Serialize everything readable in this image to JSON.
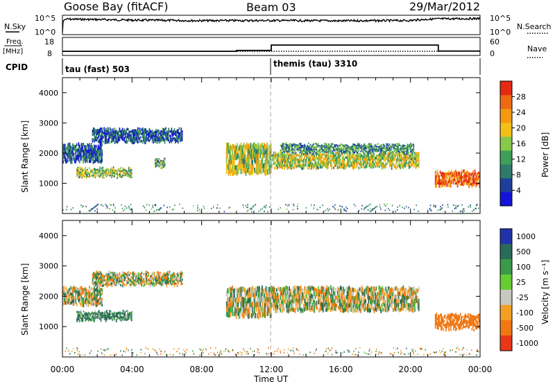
{
  "header": {
    "station": "Goose Bay (fitACF)",
    "beam": "Beam 03",
    "date": "29/Mar/2012"
  },
  "nsky_panel": {
    "left_label": "N.Sky",
    "right_label": "N.Search",
    "left_ticks": [
      "10^5",
      "10^0"
    ],
    "right_ticks": [
      "10^5",
      "10^0"
    ]
  },
  "freq_panel": {
    "left_label_1": "Freq.",
    "left_label_2": "[MHz]",
    "right_label": "Nave",
    "left_ticks": [
      "18",
      "8"
    ],
    "right_ticks": [
      "60",
      "0"
    ]
  },
  "cpid": {
    "label": "CPID",
    "segments": [
      {
        "name": "tau (fast) 503",
        "start_hour": 0
      },
      {
        "name": "themis (tau) 3310",
        "start_hour": 12
      }
    ]
  },
  "time_axis": {
    "label": "Time UT",
    "ticks": [
      "00:00",
      "04:00",
      "08:00",
      "12:00",
      "16:00",
      "20:00",
      "00:00"
    ]
  },
  "power_panel": {
    "ylabel": "Slant Range [km]",
    "yticks": [
      "1000",
      "2000",
      "3000",
      "4000"
    ],
    "colorbar_label": "Power [dB]",
    "colorbar_ticks": [
      "28",
      "24",
      "20",
      "16",
      "12",
      "8",
      "4"
    ],
    "colors": [
      "#1414d8",
      "#1e3f9e",
      "#2f7a6a",
      "#3f9e5a",
      "#86c84a",
      "#f2c018",
      "#f39a12",
      "#ef6a14",
      "#e42a14"
    ]
  },
  "velocity_panel": {
    "ylabel": "Slant Range [km]",
    "yticks": [
      "1000",
      "2000",
      "3000",
      "4000"
    ],
    "colorbar_label": "Velocity [m s⁻¹]",
    "colorbar_ticks": [
      "1000",
      "500",
      "100",
      "25",
      "-25",
      "-100",
      "-500",
      "-1000"
    ],
    "colors": [
      "#2233aa",
      "#2a6a58",
      "#3a9a4a",
      "#66cc33",
      "#c8c8c0",
      "#f2a024",
      "#f07814",
      "#e83818"
    ]
  },
  "chart_data": [
    {
      "type": "line",
      "title": "Goose Bay (fitACF)  Beam 03  29/Mar/2012",
      "series": [
        {
          "name": "N.Sky",
          "x": [
            0,
            0.2,
            4,
            8,
            12,
            16,
            20,
            21.5,
            24
          ],
          "values": [
            1,
            25000,
            12000,
            8000,
            9000,
            7000,
            9000,
            30000,
            40000
          ]
        },
        {
          "name": "N.Search",
          "x": [
            0,
            24
          ],
          "values": [
            1,
            1
          ]
        }
      ],
      "xlim": [
        0,
        24
      ],
      "ylog": true
    },
    {
      "type": "line",
      "series": [
        {
          "name": "Freq.",
          "x": [
            0,
            10,
            12,
            21.6,
            24
          ],
          "values": [
            10.0,
            10.6,
            14.5,
            10.2,
            10.2
          ]
        },
        {
          "name": "Nave",
          "x": [
            0,
            24
          ],
          "values": [
            18,
            18
          ]
        }
      ],
      "xlim": [
        0,
        24
      ]
    },
    {
      "type": "heatmap",
      "quantity": "Power",
      "unit": "dB",
      "xlabel": "Time UT",
      "ylabel": "Slant Range [km]",
      "xlim": [
        0,
        24
      ],
      "ylim": [
        0,
        4500
      ],
      "colorbar_range": [
        0,
        30
      ],
      "regions": [
        {
          "t_start": 0.0,
          "t_end": 2.3,
          "range_min": 1700,
          "range_max": 2300,
          "power": 6
        },
        {
          "t_start": 1.7,
          "t_end": 6.9,
          "range_min": 2350,
          "range_max": 2800,
          "power": 6
        },
        {
          "t_start": 0.8,
          "t_end": 4.0,
          "range_min": 1200,
          "range_max": 1500,
          "power": 14
        },
        {
          "t_start": 5.3,
          "t_end": 5.9,
          "range_min": 1500,
          "range_max": 1800,
          "power": 12
        },
        {
          "t_start": 9.4,
          "t_end": 12.0,
          "range_min": 1300,
          "range_max": 2300,
          "power": 16
        },
        {
          "t_start": 12.0,
          "t_end": 20.5,
          "range_min": 1500,
          "range_max": 2000,
          "power": 16
        },
        {
          "t_start": 12.5,
          "t_end": 20.2,
          "range_min": 2000,
          "range_max": 2300,
          "power": 10
        },
        {
          "t_start": 21.4,
          "t_end": 24.0,
          "range_min": 900,
          "range_max": 1400,
          "power": 26
        }
      ]
    },
    {
      "type": "heatmap",
      "quantity": "Velocity",
      "unit": "m s^-1",
      "xlabel": "Time UT",
      "ylabel": "Slant Range [km]",
      "xlim": [
        0,
        24
      ],
      "ylim": [
        0,
        4500
      ],
      "colorbar_range": [
        -1000,
        1000
      ],
      "regions": [
        {
          "t_start": 0.0,
          "t_end": 2.3,
          "range_min": 1700,
          "range_max": 2300,
          "velocity": 0
        },
        {
          "t_start": 1.7,
          "t_end": 6.9,
          "range_min": 2350,
          "range_max": 2800,
          "velocity": 0
        },
        {
          "t_start": 0.8,
          "t_end": 4.0,
          "range_min": 1200,
          "range_max": 1500,
          "velocity": 150
        },
        {
          "t_start": 9.4,
          "t_end": 12.0,
          "range_min": 1300,
          "range_max": 2300,
          "velocity": 0
        },
        {
          "t_start": 12.0,
          "t_end": 20.5,
          "range_min": 1500,
          "range_max": 2300,
          "velocity": 0
        },
        {
          "t_start": 21.4,
          "t_end": 24.0,
          "range_min": 900,
          "range_max": 1400,
          "velocity": -300
        }
      ]
    }
  ]
}
